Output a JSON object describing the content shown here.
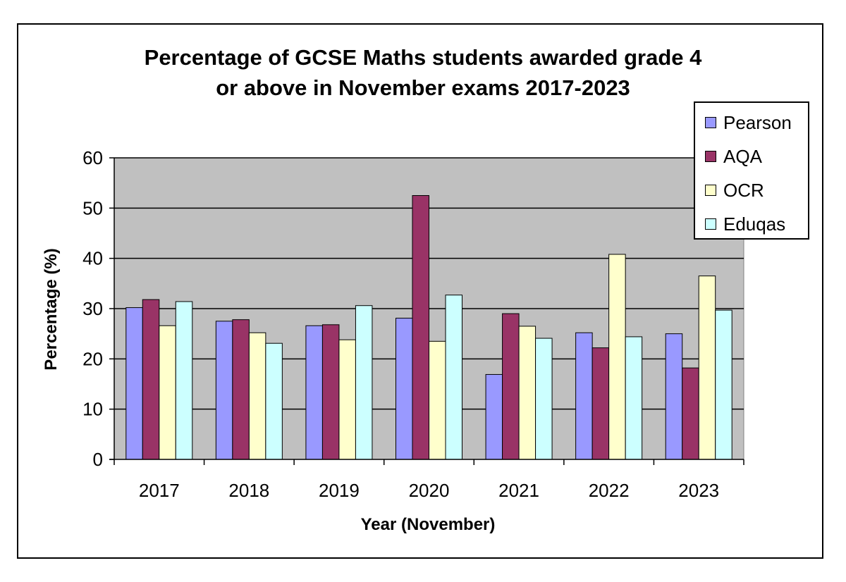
{
  "chart_data": {
    "type": "bar",
    "title_lines": [
      "Percentage of GCSE Maths students awarded grade 4",
      "or above in November exams 2017-2023"
    ],
    "xlabel": "Year (November)",
    "ylabel": "Percentage (%)",
    "categories": [
      "2017",
      "2018",
      "2019",
      "2020",
      "2021",
      "2022",
      "2023"
    ],
    "ylim": [
      0,
      60
    ],
    "yticks": [
      0,
      10,
      20,
      30,
      40,
      50,
      60
    ],
    "grid": true,
    "legend_position": "top-right",
    "plot_background": "#c0c0c0",
    "series": [
      {
        "name": "Pearson",
        "color": "#9999ff",
        "values": [
          30.2,
          27.5,
          26.6,
          28.1,
          16.9,
          25.2,
          25.0
        ]
      },
      {
        "name": "AQA",
        "color": "#993366",
        "values": [
          31.8,
          27.8,
          26.8,
          52.5,
          29.0,
          22.2,
          18.2
        ]
      },
      {
        "name": "OCR",
        "color": "#ffffcc",
        "values": [
          26.6,
          25.2,
          23.8,
          23.5,
          26.5,
          40.8,
          36.5
        ]
      },
      {
        "name": "Eduqas",
        "color": "#ccffff",
        "values": [
          31.4,
          23.1,
          30.6,
          32.7,
          24.1,
          24.4,
          29.7
        ]
      }
    ]
  }
}
